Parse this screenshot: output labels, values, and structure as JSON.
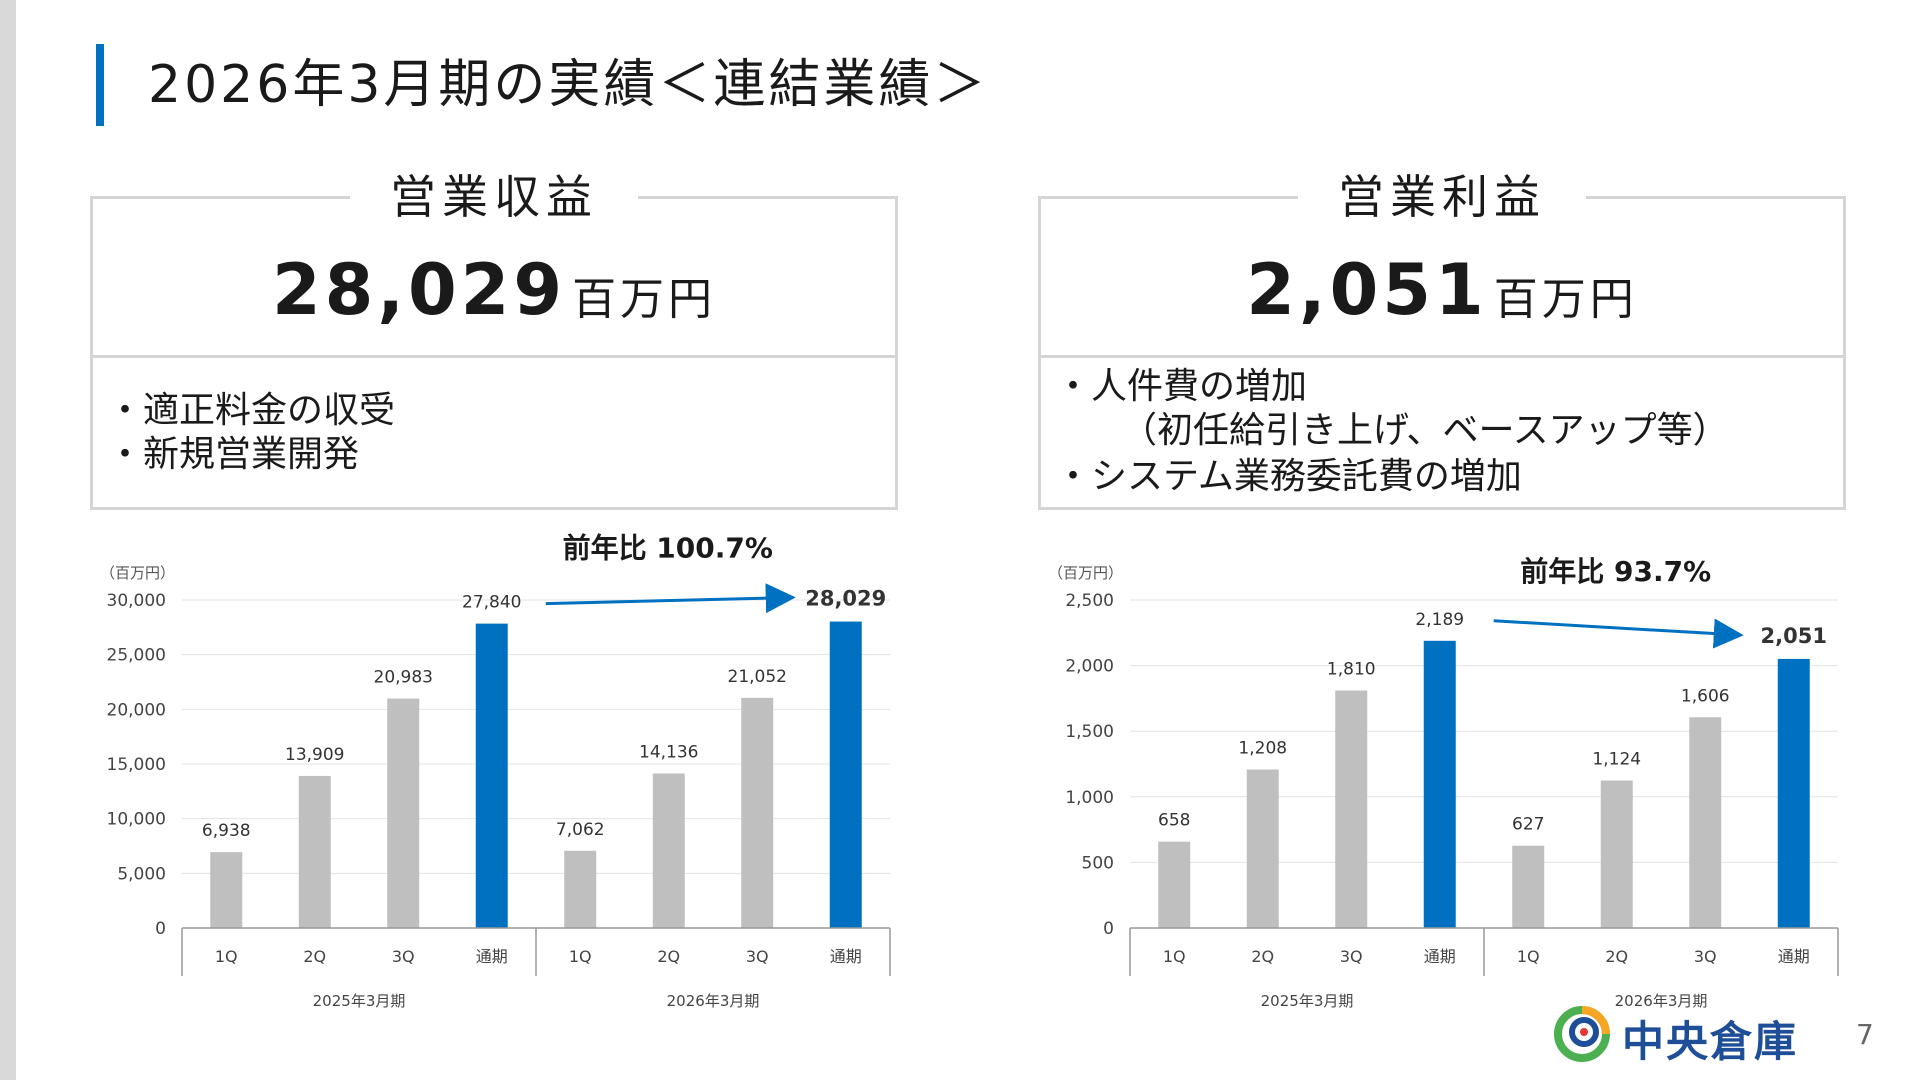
{
  "slide": {
    "title": "2026年3月期の実績＜連結業績＞",
    "page_number": "7",
    "logo_text": "中央倉庫"
  },
  "revenue": {
    "heading": "営業収益",
    "value": "28,029",
    "unit": "百万円",
    "bullets": [
      "・適正料金の収受",
      "・新規営業開発"
    ]
  },
  "profit": {
    "heading": "営業利益",
    "value": "2,051",
    "unit": "百万円",
    "bullets": [
      "・人件費の増加",
      "（初任給引き上げ、ベースアップ等）",
      "・システム業務委託費の増加"
    ]
  },
  "colors": {
    "accent": "#0070c0",
    "bar_gray": "#bfbfbf",
    "border": "#d5d5d5",
    "logo": "#1f4e98"
  },
  "chart_data": [
    {
      "type": "bar",
      "unit_label": "（百万円）",
      "yoy_label": "前年比 100.7%",
      "categories": [
        "1Q",
        "2Q",
        "3Q",
        "通期",
        "1Q",
        "2Q",
        "3Q",
        "通期"
      ],
      "groups": [
        "2025年3月期",
        "2026年3月期"
      ],
      "values": [
        6938,
        13909,
        20983,
        27840,
        7062,
        14136,
        21052,
        28029
      ],
      "value_labels": [
        "6,938",
        "13,909",
        "20,983",
        "27,840",
        "7,062",
        "14,136",
        "21,052",
        "28,029"
      ],
      "highlight": [
        false,
        false,
        false,
        true,
        false,
        false,
        false,
        true
      ],
      "ylim": [
        0,
        30000
      ],
      "yticks": [
        0,
        5000,
        10000,
        15000,
        20000,
        25000,
        30000
      ],
      "ytick_labels": [
        "0",
        "5,000",
        "10,000",
        "15,000",
        "20,000",
        "25,000",
        "30,000"
      ],
      "grid": true
    },
    {
      "type": "bar",
      "unit_label": "（百万円）",
      "yoy_label": "前年比 93.7%",
      "categories": [
        "1Q",
        "2Q",
        "3Q",
        "通期",
        "1Q",
        "2Q",
        "3Q",
        "通期"
      ],
      "groups": [
        "2025年3月期",
        "2026年3月期"
      ],
      "values": [
        658,
        1208,
        1810,
        2189,
        627,
        1124,
        1606,
        2051
      ],
      "value_labels": [
        "658",
        "1,208",
        "1,810",
        "2,189",
        "627",
        "1,124",
        "1,606",
        "2,051"
      ],
      "highlight": [
        false,
        false,
        false,
        true,
        false,
        false,
        false,
        true
      ],
      "ylim": [
        0,
        2500
      ],
      "yticks": [
        0,
        500,
        1000,
        1500,
        2000,
        2500
      ],
      "ytick_labels": [
        "0",
        "500",
        "1,000",
        "1,500",
        "2,000",
        "2,500"
      ],
      "grid": true
    }
  ]
}
